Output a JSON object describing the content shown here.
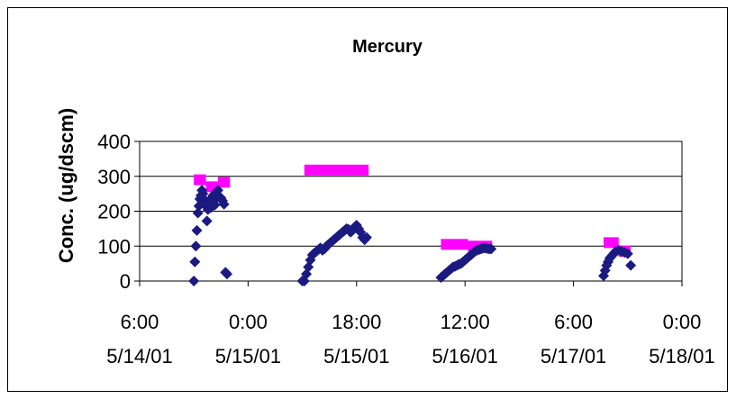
{
  "chart_data": {
    "type": "scatter",
    "title": "Mercury",
    "xlabel": "",
    "ylabel": "Conc. (ug/dscm)",
    "ylim": [
      0,
      400
    ],
    "yticks": [
      0,
      100,
      200,
      300,
      400
    ],
    "xlim": [
      "5/14/01 6:00",
      "5/18/01 0:00"
    ],
    "xticks": [
      {
        "time": "6:00",
        "date": "5/14/01"
      },
      {
        "time": "0:00",
        "date": "5/15/01"
      },
      {
        "time": "18:00",
        "date": "5/15/01"
      },
      {
        "time": "12:00",
        "date": "5/16/01"
      },
      {
        "time": "6:00",
        "date": "5/17/01"
      },
      {
        "time": "0:00",
        "date": "5/18/01"
      }
    ],
    "grid": true,
    "legend": "none",
    "colors": {
      "measured": "#1a1a80",
      "reference": "#ff00ff"
    },
    "series": [
      {
        "marker": "diamond",
        "color": "#1a1a80",
        "points": [
          [
            "5/14/01 15:00",
            0
          ],
          [
            "5/14/01 15:10",
            55
          ],
          [
            "5/14/01 15:20",
            100
          ],
          [
            "5/14/01 15:30",
            145
          ],
          [
            "5/14/01 15:40",
            195
          ],
          [
            "5/14/01 15:50",
            215
          ],
          [
            "5/14/01 16:00",
            235
          ],
          [
            "5/14/01 16:10",
            245
          ],
          [
            "5/14/01 16:20",
            260
          ],
          [
            "5/14/01 16:30",
            250
          ],
          [
            "5/14/01 16:40",
            235
          ],
          [
            "5/14/01 16:50",
            225
          ],
          [
            "5/14/01 17:00",
            215
          ],
          [
            "5/14/01 17:10",
            172
          ],
          [
            "5/14/01 17:20",
            205
          ],
          [
            "5/14/01 17:30",
            230
          ],
          [
            "5/14/01 17:40",
            220
          ],
          [
            "5/14/01 17:50",
            210
          ],
          [
            "5/14/01 18:00",
            235
          ],
          [
            "5/14/01 18:10",
            245
          ],
          [
            "5/14/01 18:20",
            230
          ],
          [
            "5/14/01 18:30",
            218
          ],
          [
            "5/14/01 18:45",
            250
          ],
          [
            "5/14/01 19:00",
            260
          ],
          [
            "5/14/01 19:15",
            240
          ],
          [
            "5/14/01 19:30",
            238
          ],
          [
            "5/14/01 19:45",
            230
          ],
          [
            "5/14/01 20:00",
            220
          ],
          [
            "5/14/01 20:15",
            25
          ],
          [
            "5/14/01 20:30",
            20
          ],
          [
            "5/15/01 9:00",
            0
          ],
          [
            "5/15/01 9:20",
            0
          ],
          [
            "5/15/01 9:40",
            20
          ],
          [
            "5/15/01 10:00",
            40
          ],
          [
            "5/15/01 10:20",
            60
          ],
          [
            "5/15/01 10:40",
            75
          ],
          [
            "5/15/01 11:00",
            80
          ],
          [
            "5/15/01 11:20",
            85
          ],
          [
            "5/15/01 11:40",
            90
          ],
          [
            "5/15/01 12:00",
            95
          ],
          [
            "5/15/01 12:20",
            88
          ],
          [
            "5/15/01 12:40",
            92
          ],
          [
            "5/15/01 13:00",
            100
          ],
          [
            "5/15/01 13:20",
            105
          ],
          [
            "5/15/01 13:40",
            110
          ],
          [
            "5/15/01 14:00",
            115
          ],
          [
            "5/15/01 14:20",
            120
          ],
          [
            "5/15/01 14:40",
            125
          ],
          [
            "5/15/01 15:00",
            130
          ],
          [
            "5/15/01 15:20",
            135
          ],
          [
            "5/15/01 15:40",
            140
          ],
          [
            "5/15/01 16:00",
            145
          ],
          [
            "5/15/01 16:20",
            150
          ],
          [
            "5/15/01 16:40",
            148
          ],
          [
            "5/15/01 17:00",
            140
          ],
          [
            "5/15/01 17:20",
            145
          ],
          [
            "5/15/01 17:40",
            155
          ],
          [
            "5/15/01 18:00",
            160
          ],
          [
            "5/15/01 18:20",
            150
          ],
          [
            "5/15/01 18:40",
            140
          ],
          [
            "5/15/01 19:00",
            125
          ],
          [
            "5/15/01 19:20",
            118
          ],
          [
            "5/15/01 19:40",
            125
          ],
          [
            "5/16/01 8:00",
            10
          ],
          [
            "5/16/01 8:20",
            15
          ],
          [
            "5/16/01 8:40",
            20
          ],
          [
            "5/16/01 9:00",
            25
          ],
          [
            "5/16/01 9:20",
            30
          ],
          [
            "5/16/01 9:40",
            35
          ],
          [
            "5/16/01 10:00",
            40
          ],
          [
            "5/16/01 10:20",
            42
          ],
          [
            "5/16/01 10:40",
            45
          ],
          [
            "5/16/01 11:00",
            48
          ],
          [
            "5/16/01 11:20",
            50
          ],
          [
            "5/16/01 11:40",
            55
          ],
          [
            "5/16/01 12:00",
            60
          ],
          [
            "5/16/01 12:20",
            65
          ],
          [
            "5/16/01 12:40",
            70
          ],
          [
            "5/16/01 13:00",
            75
          ],
          [
            "5/16/01 13:20",
            80
          ],
          [
            "5/16/01 13:40",
            85
          ],
          [
            "5/16/01 14:00",
            88
          ],
          [
            "5/16/01 14:20",
            90
          ],
          [
            "5/16/01 14:40",
            92
          ],
          [
            "5/16/01 15:00",
            94
          ],
          [
            "5/16/01 15:20",
            95
          ],
          [
            "5/16/01 15:40",
            93
          ],
          [
            "5/16/01 16:00",
            92
          ],
          [
            "5/16/01 16:20",
            92
          ],
          [
            "5/17/01 11:00",
            15
          ],
          [
            "5/17/01 11:15",
            30
          ],
          [
            "5/17/01 11:30",
            45
          ],
          [
            "5/17/01 11:45",
            55
          ],
          [
            "5/17/01 12:00",
            65
          ],
          [
            "5/17/01 12:15",
            70
          ],
          [
            "5/17/01 12:30",
            75
          ],
          [
            "5/17/01 12:45",
            80
          ],
          [
            "5/17/01 13:00",
            85
          ],
          [
            "5/17/01 13:30",
            88
          ],
          [
            "5/17/01 14:00",
            85
          ],
          [
            "5/17/01 14:30",
            82
          ],
          [
            "5/17/01 15:00",
            78
          ],
          [
            "5/17/01 15:30",
            45
          ]
        ]
      },
      {
        "marker": "bar",
        "color": "#ff00ff",
        "segments": [
          {
            "start": "5/14/01 15:00",
            "end": "5/14/01 17:00",
            "value": 290
          },
          {
            "start": "5/14/01 17:00",
            "end": "5/14/01 19:00",
            "value": 270
          },
          {
            "start": "5/14/01 19:00",
            "end": "5/14/01 21:00",
            "value": 283
          },
          {
            "start": "5/15/01 9:20",
            "end": "5/15/01 20:00",
            "value": 318
          },
          {
            "start": "5/16/01 8:00",
            "end": "5/16/01 12:30",
            "value": 105
          },
          {
            "start": "5/16/01 12:30",
            "end": "5/16/01 16:30",
            "value": 100
          },
          {
            "start": "5/17/01 11:00",
            "end": "5/17/01 13:30",
            "value": 110
          },
          {
            "start": "5/17/01 13:30",
            "end": "5/17/01 15:30",
            "value": 85
          }
        ]
      }
    ]
  }
}
